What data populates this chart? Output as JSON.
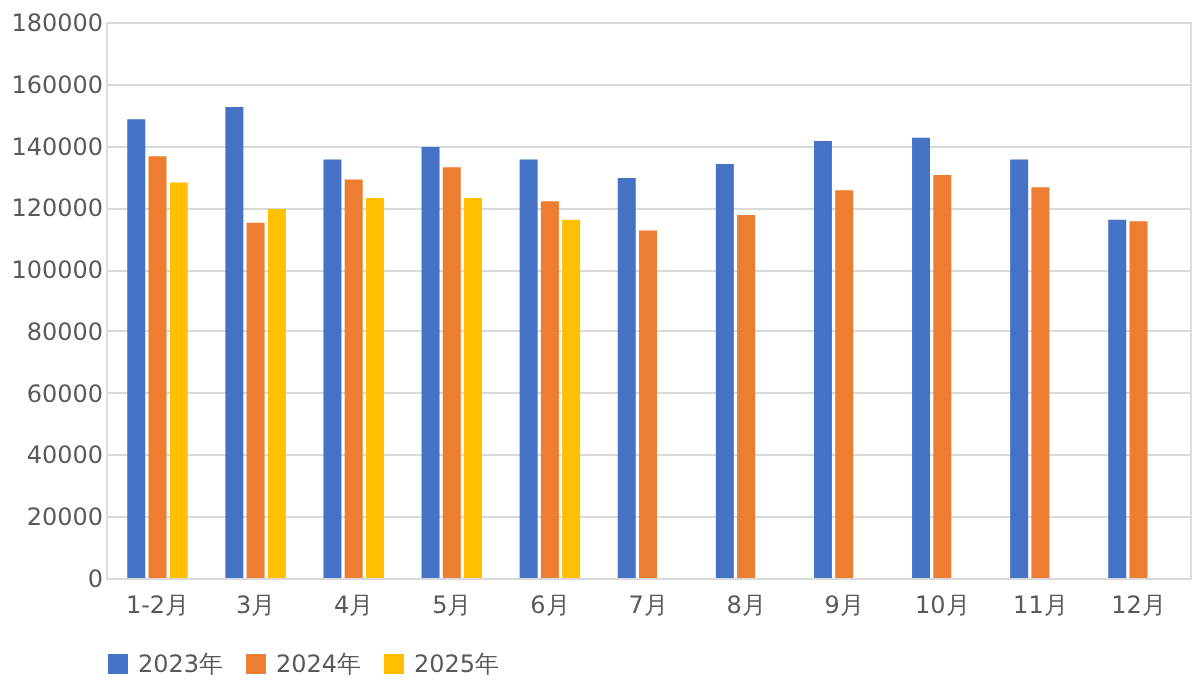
{
  "chart_data": {
    "type": "bar",
    "categories": [
      "1-2月",
      "3月",
      "4月",
      "5月",
      "6月",
      "7月",
      "8月",
      "9月",
      "10月",
      "11月",
      "12月"
    ],
    "series": [
      {
        "name": "2023年",
        "color": "#4472c4",
        "values": [
          148500,
          152500,
          135500,
          139500,
          135500,
          129500,
          134000,
          141500,
          142500,
          135500,
          116000
        ]
      },
      {
        "name": "2024年",
        "color": "#ed7d31",
        "values": [
          136500,
          115000,
          129000,
          133000,
          122000,
          112500,
          117500,
          125500,
          130500,
          126500,
          115500
        ]
      },
      {
        "name": "2025年",
        "color": "#ffc000",
        "values": [
          128000,
          119500,
          123000,
          123000,
          116000,
          null,
          null,
          null,
          null,
          null,
          null
        ]
      }
    ],
    "ylim": [
      0,
      180000
    ],
    "yticks": [
      0,
      20000,
      40000,
      60000,
      80000,
      100000,
      120000,
      140000,
      160000,
      180000
    ],
    "grid": "y",
    "legend": "bottom"
  }
}
